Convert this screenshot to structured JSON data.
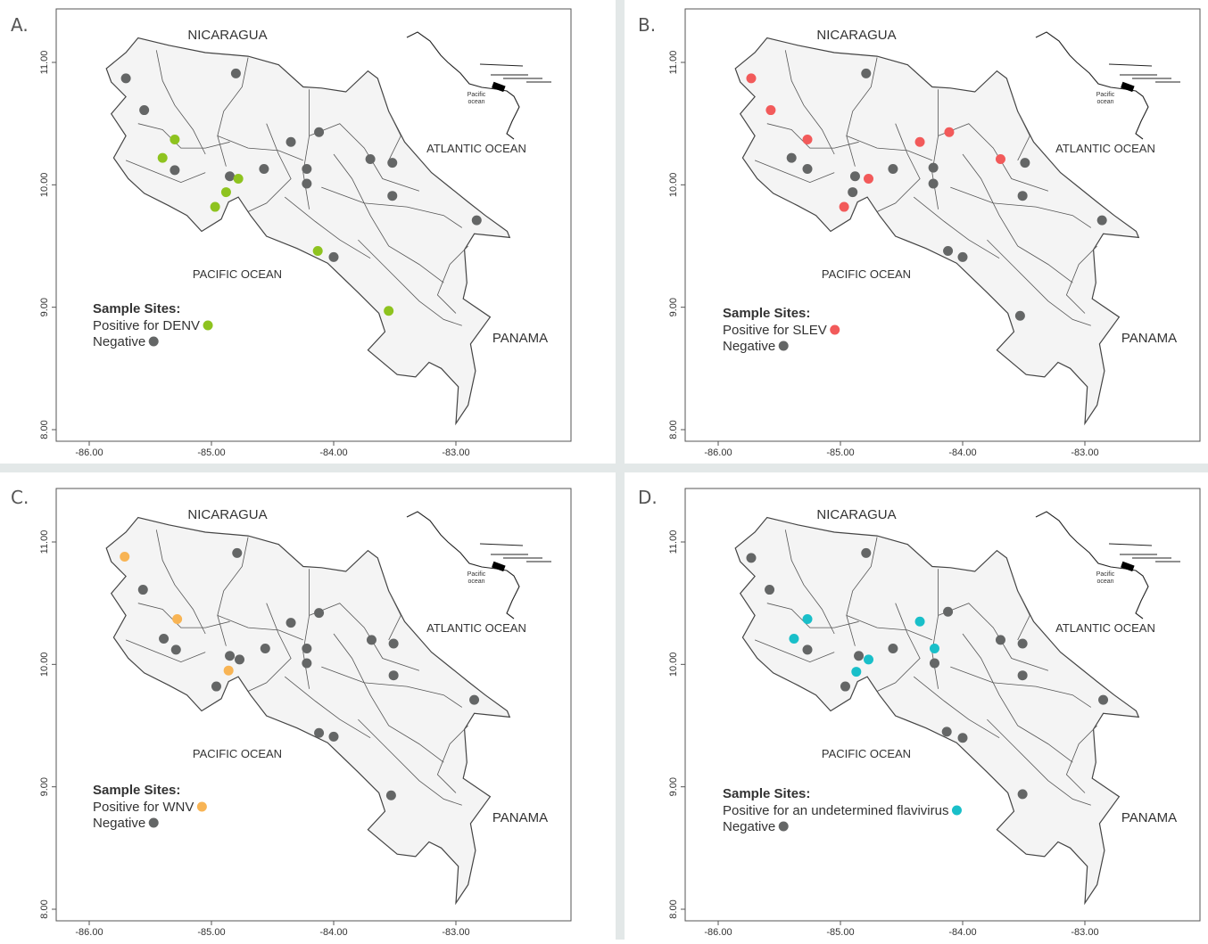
{
  "panels": [
    {
      "letter": "A.",
      "country_north": "NICARAGUA",
      "atlantic": "ATLANTIC OCEAN",
      "pacific": "PACIFIC OCEAN",
      "country_south": "PANAMA",
      "inset_label": "Pacific ocean",
      "legend_title": "Sample Sites:",
      "legend_positive": "Positive for DENV",
      "legend_negative": "Negative",
      "positive_color": "#8ec31f",
      "negative_color": "#646666",
      "x_ticks": [
        "-86.00",
        "-85.00",
        "-84.00",
        "-83.00"
      ],
      "y_ticks": [
        "8.00",
        "9.00",
        "10.00",
        "11.00"
      ],
      "positive_sites": [
        [
          -85.3,
          10.37
        ],
        [
          -85.4,
          10.22
        ],
        [
          -84.78,
          10.05
        ],
        [
          -84.88,
          9.94
        ],
        [
          -84.97,
          9.82
        ],
        [
          -84.13,
          9.46
        ],
        [
          -83.55,
          8.97
        ]
      ],
      "negative_sites": [
        [
          -85.7,
          10.87
        ],
        [
          -85.55,
          10.61
        ],
        [
          -84.8,
          10.91
        ],
        [
          -85.3,
          10.12
        ],
        [
          -84.85,
          10.07
        ],
        [
          -84.57,
          10.13
        ],
        [
          -84.35,
          10.35
        ],
        [
          -84.22,
          10.13
        ],
        [
          -84.22,
          10.01
        ],
        [
          -84.12,
          10.43
        ],
        [
          -83.7,
          10.21
        ],
        [
          -83.52,
          10.18
        ],
        [
          -83.52,
          9.91
        ],
        [
          -84.0,
          9.41
        ],
        [
          -82.83,
          9.71
        ]
      ]
    },
    {
      "letter": "B.",
      "country_north": "NICARAGUA",
      "atlantic": "ATLANTIC OCEAN",
      "pacific": "PACIFIC OCEAN",
      "country_south": "PANAMA",
      "inset_label": "Pacific ocean",
      "legend_title": "Sample Sites:",
      "legend_positive": "Positive for SLEV",
      "legend_negative": "Negative",
      "positive_color": "#f25a5a",
      "negative_color": "#646666",
      "x_ticks": [
        "-86.00",
        "-85.00",
        "-84.00",
        "-83.00"
      ],
      "y_ticks": [
        "8.00",
        "9.00",
        "10.00",
        "11.00"
      ],
      "positive_sites": [
        [
          -85.73,
          10.87
        ],
        [
          -85.57,
          10.61
        ],
        [
          -85.27,
          10.37
        ],
        [
          -84.35,
          10.35
        ],
        [
          -84.11,
          10.43
        ],
        [
          -83.69,
          10.21
        ],
        [
          -84.77,
          10.05
        ],
        [
          -84.97,
          9.82
        ]
      ],
      "negative_sites": [
        [
          -84.79,
          10.91
        ],
        [
          -85.4,
          10.22
        ],
        [
          -85.27,
          10.13
        ],
        [
          -84.88,
          10.07
        ],
        [
          -84.9,
          9.94
        ],
        [
          -84.57,
          10.13
        ],
        [
          -84.24,
          10.14
        ],
        [
          -84.24,
          10.01
        ],
        [
          -83.49,
          10.18
        ],
        [
          -83.51,
          9.91
        ],
        [
          -84.12,
          9.46
        ],
        [
          -84.0,
          9.41
        ],
        [
          -83.53,
          8.93
        ],
        [
          -82.86,
          9.71
        ]
      ]
    },
    {
      "letter": "C.",
      "country_north": "NICARAGUA",
      "atlantic": "ATLANTIC OCEAN",
      "pacific": "PACIFIC OCEAN",
      "country_south": "PANAMA",
      "inset_label": "Pacific ocean",
      "legend_title": "Sample Sites:",
      "legend_positive": "Positive for WNV",
      "legend_negative": "Negative",
      "positive_color": "#f8b454",
      "negative_color": "#646666",
      "x_ticks": [
        "-86.00",
        "-85.00",
        "-84.00",
        "-83.00"
      ],
      "y_ticks": [
        "8.00",
        "9.00",
        "10.00",
        "11.00"
      ],
      "positive_sites": [
        [
          -85.71,
          10.88
        ],
        [
          -85.28,
          10.37
        ],
        [
          -84.86,
          9.95
        ]
      ],
      "negative_sites": [
        [
          -85.56,
          10.61
        ],
        [
          -84.79,
          10.91
        ],
        [
          -85.39,
          10.21
        ],
        [
          -85.29,
          10.12
        ],
        [
          -84.85,
          10.07
        ],
        [
          -84.77,
          10.04
        ],
        [
          -84.56,
          10.13
        ],
        [
          -84.35,
          10.34
        ],
        [
          -84.22,
          10.13
        ],
        [
          -84.22,
          10.01
        ],
        [
          -84.12,
          10.42
        ],
        [
          -83.69,
          10.2
        ],
        [
          -83.51,
          10.17
        ],
        [
          -83.51,
          9.91
        ],
        [
          -84.12,
          9.44
        ],
        [
          -84.0,
          9.41
        ],
        [
          -83.53,
          8.93
        ],
        [
          -82.85,
          9.71
        ],
        [
          -84.96,
          9.82
        ]
      ]
    },
    {
      "letter": "D.",
      "country_north": "NICARAGUA",
      "atlantic": "ATLANTIC OCEAN",
      "pacific": "PACIFIC OCEAN",
      "country_south": "PANAMA",
      "inset_label": "Pacific ocean",
      "legend_title": "Sample Sites:",
      "legend_positive": "Positive for an undetermined flavivirus",
      "legend_negative": "Negative",
      "positive_color": "#19bfc9",
      "negative_color": "#646666",
      "x_ticks": [
        "-86.00",
        "-85.00",
        "-84.00",
        "-83.00"
      ],
      "y_ticks": [
        "8.00",
        "9.00",
        "10.00",
        "11.00"
      ],
      "positive_sites": [
        [
          -85.27,
          10.37
        ],
        [
          -85.38,
          10.21
        ],
        [
          -84.35,
          10.35
        ],
        [
          -84.23,
          10.13
        ],
        [
          -84.77,
          10.04
        ],
        [
          -84.87,
          9.94
        ]
      ],
      "negative_sites": [
        [
          -85.73,
          10.87
        ],
        [
          -85.58,
          10.61
        ],
        [
          -84.79,
          10.91
        ],
        [
          -85.27,
          10.12
        ],
        [
          -84.85,
          10.07
        ],
        [
          -84.57,
          10.13
        ],
        [
          -84.12,
          10.43
        ],
        [
          -84.23,
          10.01
        ],
        [
          -83.69,
          10.2
        ],
        [
          -83.51,
          10.17
        ],
        [
          -83.51,
          9.91
        ],
        [
          -84.96,
          9.82
        ],
        [
          -84.13,
          9.45
        ],
        [
          -84.0,
          9.4
        ],
        [
          -83.51,
          8.94
        ],
        [
          -82.85,
          9.71
        ]
      ]
    }
  ]
}
